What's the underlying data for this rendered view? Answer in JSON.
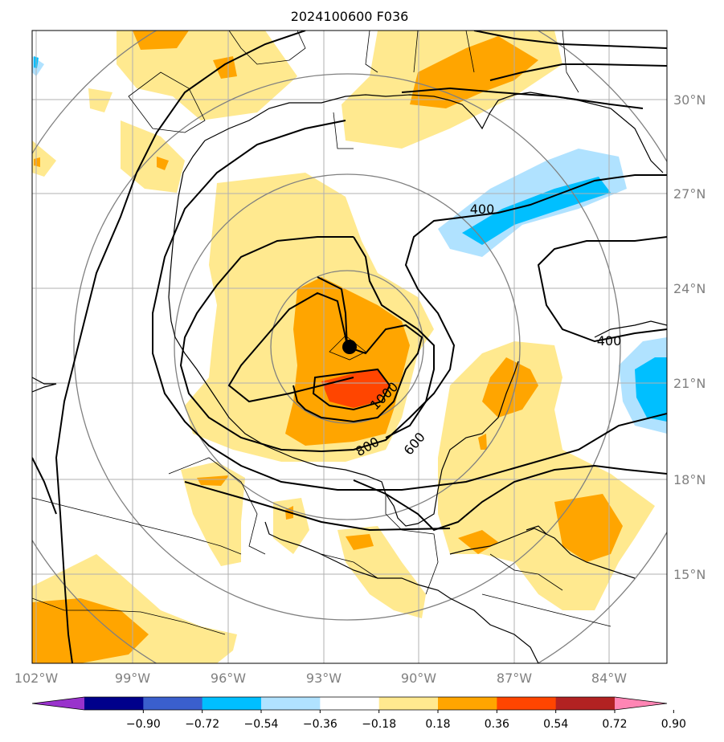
{
  "title": "2024100600 F036",
  "lat_labels": [
    "30°N",
    "27°N",
    "24°N",
    "21°N",
    "18°N",
    "15°N"
  ],
  "lon_labels": [
    "102°W",
    "99°W",
    "96°W",
    "93°W",
    "90°W",
    "87°W",
    "84°W"
  ],
  "contour_labels": [
    "400",
    "400",
    "1000",
    "800",
    "600"
  ],
  "colorbar": {
    "ticks": [
      "−0.90",
      "−0.72",
      "−0.54",
      "−0.36",
      "−0.18",
      "0.18",
      "0.36",
      "0.54",
      "0.72",
      "0.90"
    ],
    "colors": [
      "#9932cc",
      "#00008b",
      "#3a5fcd",
      "#00bfff",
      "#b0e2ff",
      "#ffffff",
      "#ffe98f",
      "#ffa500",
      "#ff4500",
      "#b22222",
      "#ff85b4"
    ]
  },
  "colors": {
    "fill_036": "#ffe98f",
    "fill_054": "#ffa500",
    "fill_072": "#ff4500",
    "fill_neg036": "#b0e2ff",
    "fill_neg054": "#00bfff",
    "gridline": "#b0b0b0",
    "range_ring": "#808080"
  },
  "storm_center": {
    "lat": 22.1,
    "lon": -92.1
  }
}
